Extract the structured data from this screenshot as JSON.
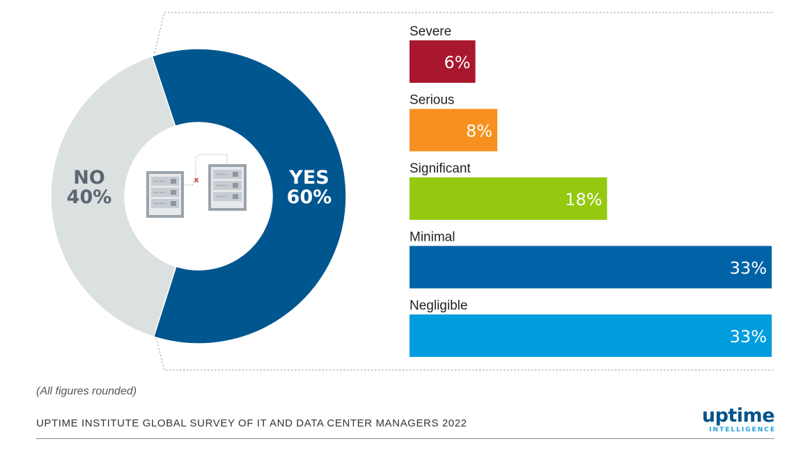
{
  "chart_data": [
    {
      "type": "pie",
      "subtype": "donut",
      "slices": [
        {
          "label": "YES",
          "value": 60,
          "display": "60%",
          "color": "#00568f"
        },
        {
          "label": "NO",
          "value": 40,
          "display": "40%",
          "color": "#dbe0e1"
        }
      ]
    },
    {
      "type": "bar",
      "orientation": "horizontal",
      "categories": [
        "Severe",
        "Serious",
        "Significant",
        "Minimal",
        "Negligible"
      ],
      "values": [
        6,
        8,
        18,
        33,
        33
      ],
      "value_labels": [
        "6%",
        "8%",
        "18%",
        "33%",
        "33%"
      ],
      "colors": [
        "#a8172d",
        "#f7901e",
        "#93c90f",
        "#0063a8",
        "#009ddf"
      ],
      "xlim": [
        0,
        33
      ]
    }
  ],
  "footnote": "(All figures rounded)",
  "source": "UPTIME INSTITUTE GLOBAL SURVEY OF IT AND DATA CENTER MANAGERS 2022",
  "logo": {
    "word": "uptime",
    "sub": "INTELLIGENCE"
  },
  "icon_mark": "x"
}
